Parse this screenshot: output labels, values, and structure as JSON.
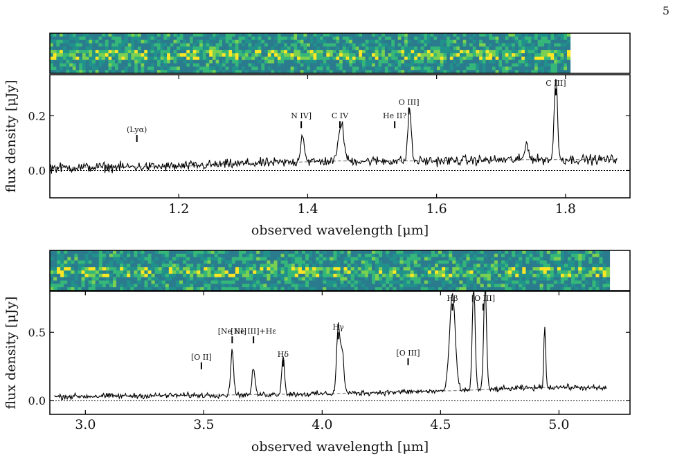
{
  "page_number": "5",
  "chart_data": [
    {
      "type": "line",
      "panel": "top",
      "xlabel": "observed wavelength [μm]",
      "ylabel": "flux density [μJy]",
      "xlim": [
        1.0,
        1.9
      ],
      "ylim": [
        -0.1,
        0.35
      ],
      "xticks": [
        {
          "v": 1.2,
          "label": "1.2"
        },
        {
          "v": 1.4,
          "label": "1.4"
        },
        {
          "v": 1.6,
          "label": "1.6"
        },
        {
          "v": 1.8,
          "label": "1.8"
        }
      ],
      "yticks": [
        {
          "v": 0.0,
          "label": "0.0"
        },
        {
          "v": 0.2,
          "label": "0.2"
        }
      ],
      "continuum": [
        [
          1.0,
          0.01
        ],
        [
          1.2,
          0.015
        ],
        [
          1.3,
          0.025
        ],
        [
          1.45,
          0.035
        ],
        [
          1.6,
          0.035
        ],
        [
          1.75,
          0.04
        ],
        [
          1.88,
          0.04
        ]
      ],
      "noise": 0.022,
      "spectrum_end": 1.88,
      "emission_peaks": [
        [
          1.392,
          0.1,
          0.003
        ],
        [
          1.452,
          0.14,
          0.004
        ],
        [
          1.558,
          0.2,
          0.0025
        ],
        [
          1.785,
          0.3,
          0.0025
        ],
        [
          1.74,
          0.06,
          0.003
        ]
      ],
      "lines": [
        {
          "label": "(Lyα)",
          "x": 1.135,
          "y": 0.13
        },
        {
          "label": "N IV]",
          "x": 1.39,
          "y": 0.18
        },
        {
          "label": "C IV",
          "x": 1.45,
          "y": 0.18
        },
        {
          "label": "He II?",
          "x": 1.535,
          "y": 0.18
        },
        {
          "label": "O III]",
          "x": 1.557,
          "y": 0.23
        },
        {
          "label": "C III]",
          "x": 1.785,
          "y": 0.3
        }
      ],
      "spectrum_2d_colors": [
        "#440154",
        "#2b7b8e",
        "#21918c",
        "#35b779",
        "#7ad151",
        "#fde725"
      ]
    },
    {
      "type": "line",
      "panel": "bottom",
      "xlabel": "observed wavelength [μm]",
      "ylabel": "flux density [μJy]",
      "xlim": [
        2.85,
        5.3
      ],
      "ylim": [
        -0.1,
        0.8
      ],
      "xticks": [
        {
          "v": 3.0,
          "label": "3.0"
        },
        {
          "v": 3.5,
          "label": "3.5"
        },
        {
          "v": 4.0,
          "label": "4.0"
        },
        {
          "v": 4.5,
          "label": "4.5"
        },
        {
          "v": 5.0,
          "label": "5.0"
        }
      ],
      "yticks": [
        {
          "v": 0.0,
          "label": "0.0"
        },
        {
          "v": 0.5,
          "label": "0.5"
        }
      ],
      "continuum": [
        [
          2.87,
          0.03
        ],
        [
          3.5,
          0.04
        ],
        [
          4.0,
          0.05
        ],
        [
          4.5,
          0.07
        ],
        [
          5.0,
          0.1
        ],
        [
          5.2,
          0.09
        ]
      ],
      "noise": 0.025,
      "spectrum_end": 5.2,
      "emission_peaks": [
        [
          3.62,
          0.34,
          0.006
        ],
        [
          3.71,
          0.2,
          0.006
        ],
        [
          3.835,
          0.28,
          0.006
        ],
        [
          4.068,
          0.49,
          0.007
        ],
        [
          4.085,
          0.3,
          0.007
        ],
        [
          4.55,
          0.7,
          0.012
        ],
        [
          4.64,
          0.78,
          0.006
        ],
        [
          4.688,
          0.78,
          0.006
        ],
        [
          4.94,
          0.45,
          0.004
        ]
      ],
      "lines": [
        {
          "label": "[O II]",
          "x": 3.49,
          "y": 0.28
        },
        {
          "label": "[Ne III]",
          "x": 3.62,
          "y": 0.47
        },
        {
          "label": "[Ne III]+Hε",
          "x": 3.71,
          "y": 0.47
        },
        {
          "label": "Hδ",
          "x": 3.835,
          "y": 0.3
        },
        {
          "label": "Hγ",
          "x": 4.068,
          "y": 0.5
        },
        {
          "label": "[O III]",
          "x": 4.363,
          "y": 0.31
        },
        {
          "label": "Hβ",
          "x": 4.55,
          "y": 0.71
        },
        {
          "label": "[O III]",
          "x": 4.68,
          "y": 0.71
        }
      ],
      "spectrum_2d_colors": [
        "#440154",
        "#2b7b8e",
        "#21918c",
        "#35b779",
        "#7ad151",
        "#fde725"
      ]
    }
  ]
}
